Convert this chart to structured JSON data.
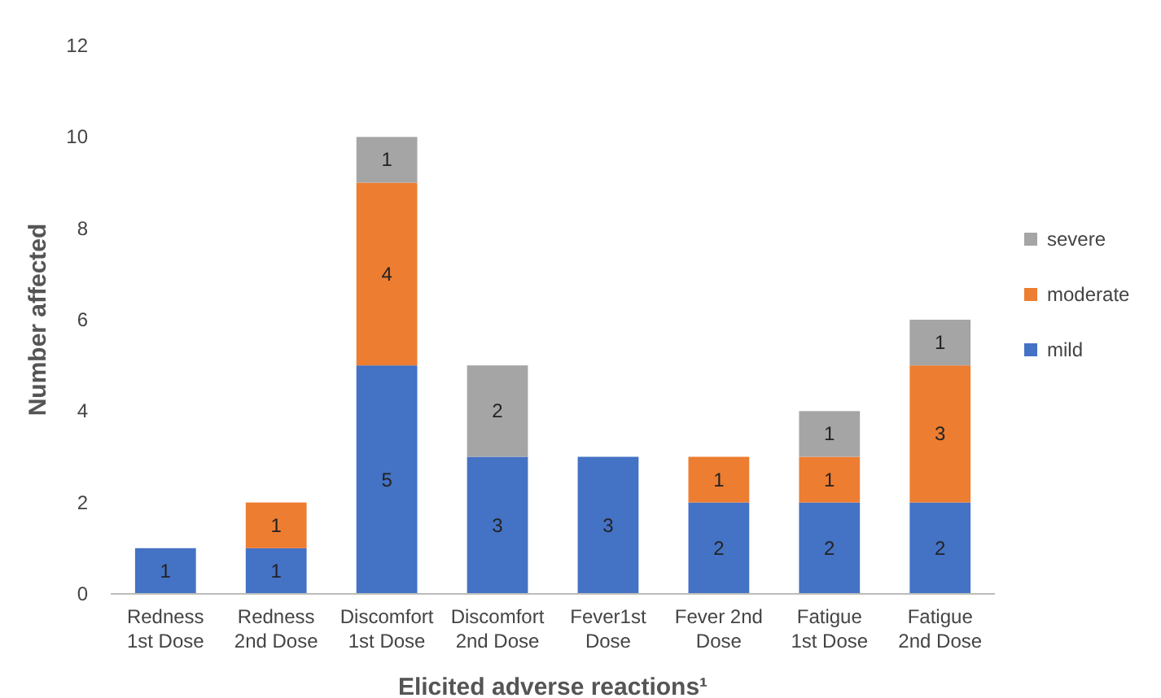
{
  "chart_data": {
    "type": "bar",
    "stacked": true,
    "xlabel": "Elicited adverse reactions¹",
    "ylabel": "Number affected",
    "categories": [
      "Redness 1st Dose",
      "Redness 2nd Dose",
      "Discomfort 1st Dose",
      "Discomfort 2nd Dose",
      "Fever1st Dose",
      "Fever 2nd Dose",
      "Fatigue 1st Dose",
      "Fatigue 2nd Dose"
    ],
    "series": [
      {
        "name": "mild",
        "color": "#4472c4",
        "values": [
          1,
          1,
          5,
          3,
          3,
          2,
          2,
          2
        ]
      },
      {
        "name": "moderate",
        "color": "#ed7d31",
        "values": [
          null,
          1,
          4,
          null,
          null,
          1,
          1,
          3
        ]
      },
      {
        "name": "severe",
        "color": "#a5a5a5",
        "values": [
          null,
          null,
          1,
          2,
          null,
          null,
          1,
          1
        ]
      }
    ],
    "ylim": [
      0,
      12
    ],
    "yticks": [
      0,
      2,
      4,
      6,
      8,
      10,
      12
    ],
    "data_labels": true,
    "legend": "right",
    "grid": false
  }
}
